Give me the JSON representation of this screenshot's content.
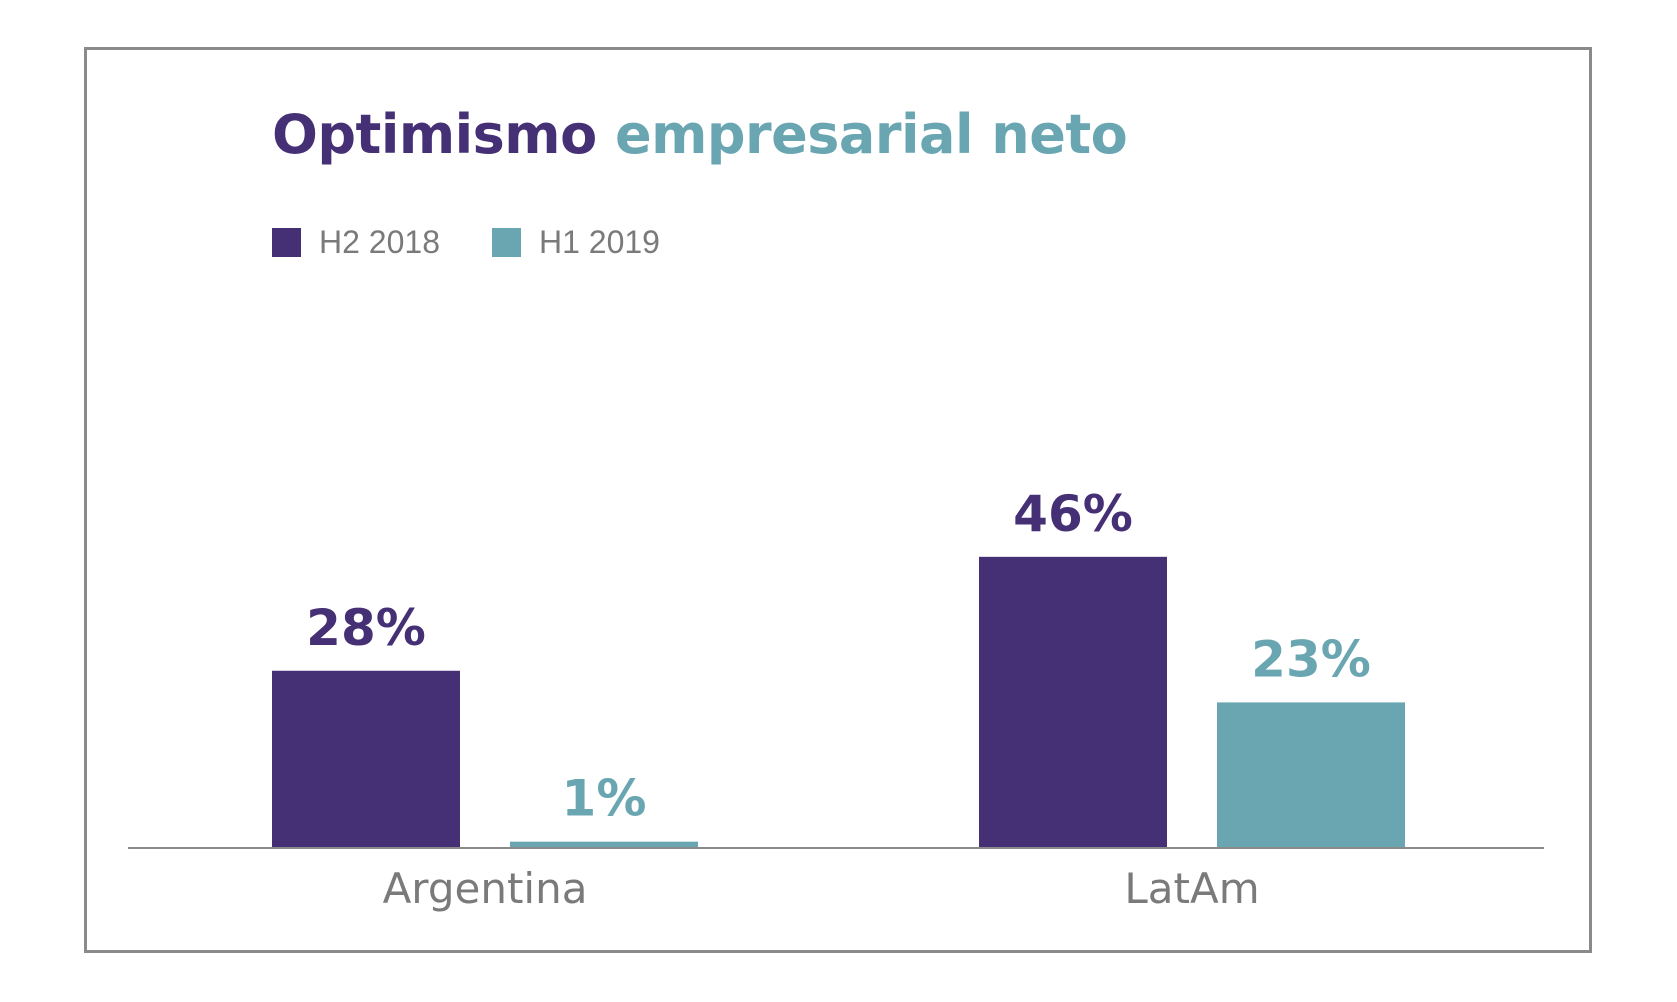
{
  "chart_data": {
    "type": "bar",
    "title": "Optimismo empresarial neto",
    "title_parts": [
      "Optimismo",
      "empresarial neto"
    ],
    "categories": [
      "Argentina",
      "LatAm"
    ],
    "series": [
      {
        "name": "H2 2018",
        "values": [
          28,
          46
        ],
        "labels": [
          "28%",
          "46%"
        ],
        "color": "#452F75"
      },
      {
        "name": "H1 2019",
        "values": [
          1,
          23
        ],
        "labels": [
          "1%",
          "23%"
        ],
        "color": "#6AA6B2"
      }
    ],
    "unit": "%",
    "ylim": [
      0,
      50
    ],
    "grid": false,
    "legend": "top-left",
    "colors": {
      "title_primary": "#452F75",
      "title_secondary": "#6AA6B2",
      "axis": "#8a8a8a",
      "category_label": "#7a7a7a"
    }
  }
}
